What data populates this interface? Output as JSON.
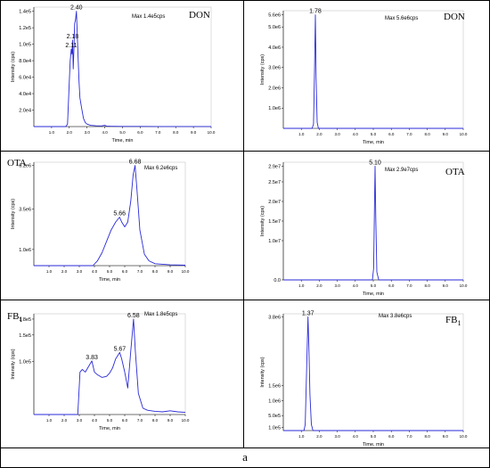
{
  "figure_label": "a",
  "chart_data": [
    {
      "type": "line",
      "title": "DON",
      "max_label": "Max 1.4e5cps",
      "xlabel": "Time, min",
      "ylabel": "Intensity (cps)",
      "xlim": [
        0,
        10
      ],
      "ylim": [
        0,
        145000
      ],
      "xticks": [
        "1.0",
        "2.0",
        "3.0",
        "4.0",
        "5.0",
        "6.0",
        "7.0",
        "8.0",
        "9.0",
        "10.0"
      ],
      "yticks": [
        {
          "label": "2.0e4",
          "value": 20000
        },
        {
          "label": "4.0e4",
          "value": 40000
        },
        {
          "label": "6.0e4",
          "value": 60000
        },
        {
          "label": "8.0e4",
          "value": 80000
        },
        {
          "label": "1.0e5",
          "value": 100000
        },
        {
          "label": "1.2e5",
          "value": 120000
        },
        {
          "label": "1.4e5",
          "value": 140000
        }
      ],
      "peak_labels": [
        {
          "text": "2.40",
          "x": 2.4,
          "y": 140000
        },
        {
          "text": "2.18",
          "x": 2.18,
          "y": 105000
        },
        {
          "text": "2.11",
          "x": 2.11,
          "y": 94000
        }
      ],
      "series": [
        {
          "x": [
            0.0,
            1.8,
            1.9,
            2.0,
            2.05,
            2.11,
            2.15,
            2.18,
            2.22,
            2.26,
            2.3,
            2.35,
            2.4,
            2.45,
            2.5,
            2.55,
            2.6,
            2.7,
            2.8,
            2.9,
            3.0,
            3.2,
            3.5,
            3.8,
            4.0,
            4.1,
            4.3,
            5.0,
            6.0,
            7.0,
            8.0,
            9.0,
            10.0
          ],
          "y": [
            0,
            0,
            3000,
            55000,
            80000,
            94000,
            88000,
            105000,
            70000,
            95000,
            125000,
            130000,
            140000,
            110000,
            80000,
            55000,
            35000,
            22000,
            10000,
            5000,
            3000,
            1500,
            1000,
            800,
            1500,
            600,
            400,
            200,
            200,
            150,
            150,
            100,
            100
          ]
        }
      ]
    },
    {
      "type": "line",
      "title": "DON",
      "max_label": "Max 5.6e6cps",
      "xlabel": "Time, min",
      "ylabel": "Intensity (cps)",
      "xlim": [
        0,
        10
      ],
      "ylim": [
        0,
        5800000
      ],
      "xticks": [
        "1.0",
        "2.0",
        "3.0",
        "4.0",
        "5.0",
        "6.0",
        "7.0",
        "8.0",
        "9.0",
        "10.0"
      ],
      "yticks": [
        {
          "label": "1.0e6",
          "value": 1000000
        },
        {
          "label": "2.0e6",
          "value": 2000000
        },
        {
          "label": "3.0e6",
          "value": 3000000
        },
        {
          "label": "4.0e6",
          "value": 4000000
        },
        {
          "label": "5.0e6",
          "value": 5000000
        },
        {
          "label": "5.6e6",
          "value": 5600000
        }
      ],
      "peak_labels": [
        {
          "text": "1.78",
          "x": 1.78,
          "y": 5600000
        }
      ],
      "series": [
        {
          "x": [
            0.0,
            1.6,
            1.68,
            1.74,
            1.78,
            1.82,
            1.88,
            1.95,
            10.0
          ],
          "y": [
            0,
            0,
            200000,
            3000000,
            5600000,
            2500000,
            300000,
            0,
            0
          ]
        }
      ]
    },
    {
      "type": "line",
      "title": "OTA",
      "max_label": "Max 6.2e6cps",
      "xlabel": "Time, min",
      "ylabel": "Intensity (cps)",
      "xlim": [
        0,
        10
      ],
      "ylim": [
        0,
        6400000
      ],
      "xticks": [
        "1.0",
        "2.0",
        "3.0",
        "4.0",
        "5.0",
        "6.0",
        "7.0",
        "8.0",
        "9.0",
        "10.0"
      ],
      "yticks": [
        {
          "label": "1.0e6",
          "value": 1000000
        },
        {
          "label": "3.5e6",
          "value": 3500000
        },
        {
          "label": "6.2e6",
          "value": 6200000
        }
      ],
      "peak_labels": [
        {
          "text": "6.68",
          "x": 6.68,
          "y": 6200000
        },
        {
          "text": "5.66",
          "x": 5.66,
          "y": 3000000
        }
      ],
      "series": [
        {
          "x": [
            0.0,
            3.9,
            4.2,
            4.5,
            4.8,
            5.1,
            5.4,
            5.66,
            5.8,
            6.0,
            6.2,
            6.4,
            6.55,
            6.68,
            6.8,
            7.0,
            7.3,
            7.6,
            8.0,
            9.0,
            10.0
          ],
          "y": [
            0,
            0,
            300000,
            800000,
            1500000,
            2200000,
            2700000,
            3000000,
            2700000,
            2400000,
            2700000,
            4000000,
            5600000,
            6200000,
            4800000,
            2200000,
            700000,
            300000,
            120000,
            50000,
            30000
          ]
        }
      ]
    },
    {
      "type": "line",
      "title": "OTA",
      "max_label": "Max 2.9e7cps",
      "xlabel": "Time, min",
      "ylabel": "Intensity (cps)",
      "xlim": [
        0,
        10
      ],
      "ylim": [
        0,
        30000000
      ],
      "xticks": [
        "1.0",
        "2.0",
        "3.0",
        "4.0",
        "5.0",
        "6.0",
        "7.0",
        "8.0",
        "9.0",
        "10.0"
      ],
      "yticks": [
        {
          "label": "0.0",
          "value": 0
        },
        {
          "label": "1.0e7",
          "value": 10000000
        },
        {
          "label": "1.5e7",
          "value": 15000000
        },
        {
          "label": "2.0e7",
          "value": 20000000
        },
        {
          "label": "2.5e7",
          "value": 25000000
        },
        {
          "label": "2.9e7",
          "value": 29000000
        }
      ],
      "peak_labels": [
        {
          "text": "5.10",
          "x": 5.1,
          "y": 29000000
        }
      ],
      "series": [
        {
          "x": [
            0.0,
            4.95,
            5.02,
            5.07,
            5.1,
            5.14,
            5.2,
            5.3,
            10.0
          ],
          "y": [
            0,
            0,
            3000000,
            20000000,
            29000000,
            16000000,
            2000000,
            0,
            0
          ]
        }
      ]
    },
    {
      "type": "line",
      "title": "FB1",
      "max_label": "Max 1.8e5cps",
      "xlabel": "Time, min",
      "ylabel": "Intensity (cps)",
      "xlim": [
        0,
        10
      ],
      "ylim": [
        0,
        190000
      ],
      "xticks": [
        "1.0",
        "2.0",
        "3.0",
        "4.0",
        "5.0",
        "6.0",
        "7.0",
        "8.0",
        "9.0",
        "10.0"
      ],
      "yticks": [
        {
          "label": "1.0e5",
          "value": 100000
        },
        {
          "label": "1.5e5",
          "value": 150000
        },
        {
          "label": "1.8e5",
          "value": 180000
        }
      ],
      "peak_labels": [
        {
          "text": "6.58",
          "x": 6.58,
          "y": 180000
        },
        {
          "text": "5.67",
          "x": 5.67,
          "y": 117000
        },
        {
          "text": "3.83",
          "x": 3.83,
          "y": 101000
        }
      ],
      "series": [
        {
          "x": [
            0.0,
            2.9,
            3.05,
            3.2,
            3.4,
            3.6,
            3.83,
            4.0,
            4.2,
            4.5,
            4.8,
            5.0,
            5.2,
            5.4,
            5.67,
            5.8,
            6.0,
            6.2,
            6.4,
            6.58,
            6.7,
            6.9,
            7.2,
            7.5,
            8.0,
            8.5,
            9.0,
            9.5,
            10.0
          ],
          "y": [
            0,
            0,
            80000,
            85000,
            80000,
            90000,
            101000,
            80000,
            75000,
            70000,
            72000,
            78000,
            88000,
            105000,
            117000,
            105000,
            80000,
            50000,
            120000,
            180000,
            120000,
            40000,
            12000,
            8000,
            6000,
            5000,
            7000,
            5000,
            4000
          ]
        }
      ]
    },
    {
      "type": "line",
      "title": "FB1",
      "max_label": "Max 3.8e6cps",
      "xlabel": "Time, min",
      "ylabel": "Intensity (cps)",
      "xlim": [
        0,
        10
      ],
      "ylim": [
        0,
        3900000
      ],
      "xticks": [
        "1.0",
        "2.0",
        "3.0",
        "4.0",
        "5.0",
        "6.0",
        "7.0",
        "8.0",
        "9.0",
        "10.0"
      ],
      "yticks": [
        {
          "label": "1.0e5",
          "value": 100000
        },
        {
          "label": "5.0e5",
          "value": 500000
        },
        {
          "label": "1.0e6",
          "value": 1000000
        },
        {
          "label": "1.5e6",
          "value": 1500000
        },
        {
          "label": "3.8e6",
          "value": 3800000
        }
      ],
      "peak_labels": [
        {
          "text": "1.37",
          "x": 1.37,
          "y": 3800000
        }
      ],
      "series": [
        {
          "x": [
            0.0,
            1.15,
            1.22,
            1.3,
            1.37,
            1.42,
            1.48,
            1.56,
            1.65,
            10.0
          ],
          "y": [
            0,
            0,
            200000,
            2200000,
            3800000,
            2800000,
            1200000,
            200000,
            0,
            0
          ]
        }
      ]
    }
  ]
}
